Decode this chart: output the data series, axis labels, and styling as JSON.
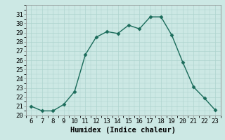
{
  "x": [
    6,
    7,
    8,
    9,
    10,
    11,
    12,
    13,
    14,
    15,
    16,
    17,
    18,
    19,
    20,
    21,
    22,
    23
  ],
  "y": [
    21.0,
    20.5,
    20.5,
    21.2,
    22.6,
    26.6,
    28.5,
    29.1,
    28.9,
    29.8,
    29.4,
    30.7,
    30.7,
    28.7,
    25.8,
    23.1,
    21.9,
    20.6
  ],
  "line_color": "#1a6b5a",
  "marker_color": "#1a6b5a",
  "bg_color": "#cce8e4",
  "grid_color": "#aed4cf",
  "xlabel": "Humidex (Indice chaleur)",
  "xlim": [
    5.5,
    23.5
  ],
  "ylim": [
    20,
    32
  ],
  "xticks": [
    6,
    7,
    8,
    9,
    10,
    11,
    12,
    13,
    14,
    15,
    16,
    17,
    18,
    19,
    20,
    21,
    22,
    23
  ],
  "yticks": [
    20,
    21,
    22,
    23,
    24,
    25,
    26,
    27,
    28,
    29,
    30,
    31
  ],
  "fontsize_ticks": 6.5,
  "fontsize_xlabel": 7.5,
  "marker_size": 2.5,
  "line_width": 1.0
}
